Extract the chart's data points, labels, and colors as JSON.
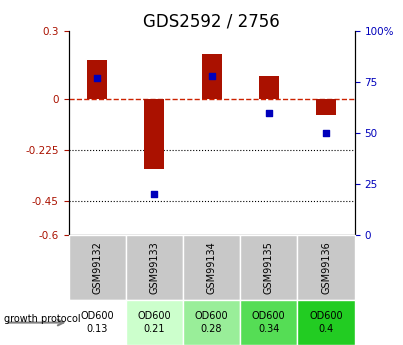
{
  "title": "GDS2592 / 2756",
  "samples": [
    "GSM99132",
    "GSM99133",
    "GSM99134",
    "GSM99135",
    "GSM99136"
  ],
  "log2_ratio": [
    0.17,
    -0.31,
    0.2,
    0.1,
    -0.07
  ],
  "percentile_rank": [
    77,
    20,
    78,
    60,
    50
  ],
  "od600_labels": [
    [
      "OD600",
      "0.13"
    ],
    [
      "OD600",
      "0.21"
    ],
    [
      "OD600",
      "0.28"
    ],
    [
      "OD600",
      "0.34"
    ],
    [
      "OD600",
      "0.4"
    ]
  ],
  "od600_colors": [
    "#ffffff",
    "#ccffcc",
    "#99ee99",
    "#55dd55",
    "#22cc22"
  ],
  "cell_gray": "#c8c8c8",
  "ylim": [
    -0.6,
    0.3
  ],
  "yticks_left": [
    0.3,
    0.0,
    -0.225,
    -0.45,
    -0.6
  ],
  "yticks_left_labels": [
    "0.3",
    "0",
    "-0.225",
    "-0.45",
    "-0.6"
  ],
  "yticks_right": [
    100,
    75,
    50,
    25,
    0
  ],
  "yticks_right_labels": [
    "100%",
    "75",
    "50",
    "25",
    "0"
  ],
  "bar_color": "#aa1100",
  "dot_color": "#0000bb",
  "hline_color": "#cc2200",
  "dotline_color": "#000000",
  "background_color": "#ffffff",
  "title_fontsize": 12,
  "tick_fontsize": 7.5,
  "cell_fontsize": 7,
  "legend_fontsize": 7.5
}
